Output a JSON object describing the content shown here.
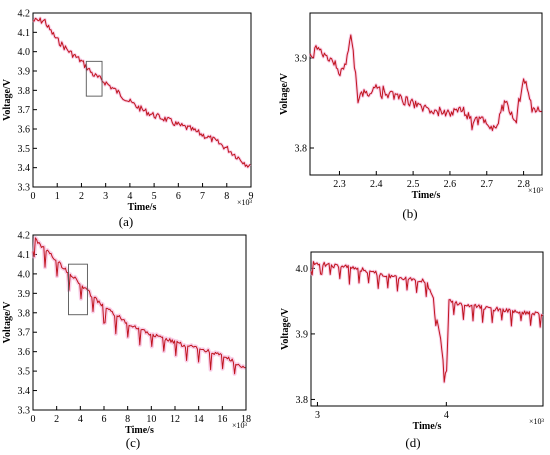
{
  "colors": {
    "line": "#c0141e",
    "halo": "#f4a6d3",
    "axis": "#000000",
    "box": "#555555"
  },
  "chart_data": [
    {
      "panel": "(a)",
      "type": "line",
      "xlabel": "Time/s",
      "ylabel": "Voltage/V",
      "x_exponent_label": "×10³",
      "xlim": [
        0,
        9
      ],
      "ylim": [
        3.3,
        4.2
      ],
      "xticks": [
        0,
        1,
        2,
        3,
        4,
        5,
        6,
        7,
        8,
        9
      ],
      "xtick_labels": [
        "0",
        "1",
        "2",
        "3",
        "4",
        "5",
        "6",
        "7",
        "8",
        "9"
      ],
      "yticks": [
        3.3,
        3.4,
        3.5,
        3.6,
        3.7,
        3.8,
        3.9,
        4.0,
        4.1,
        4.2
      ],
      "ytick_labels": [
        "3.3",
        "3.4",
        "3.5",
        "3.6",
        "3.7",
        "3.8",
        "3.9",
        "4.0",
        "4.1",
        "4.2"
      ],
      "zoom_box": {
        "x": [
          2.2,
          2.85
        ],
        "y": [
          3.77,
          3.95
        ]
      },
      "series": [
        {
          "x": [
            0,
            0.5,
            0.6,
            1,
            1.5,
            2,
            2.5,
            3,
            3.5,
            4,
            4.5,
            5,
            5.5,
            6,
            6.5,
            7,
            7.5,
            8,
            8.5,
            9
          ],
          "values": [
            4.16,
            4.16,
            4.13,
            4.06,
            4.0,
            3.95,
            3.88,
            3.84,
            3.79,
            3.74,
            3.7,
            3.67,
            3.65,
            3.62,
            3.6,
            3.57,
            3.54,
            3.5,
            3.45,
            3.4
          ]
        }
      ]
    },
    {
      "panel": "(b)",
      "type": "line",
      "xlabel": "Time/s",
      "ylabel": "Voltage/V",
      "x_exponent_label": "×10³",
      "xlim": [
        2.22,
        2.85
      ],
      "ylim": [
        3.77,
        3.95
      ],
      "xticks": [
        2.3,
        2.4,
        2.5,
        2.6,
        2.7,
        2.8
      ],
      "xtick_labels": [
        "2.3",
        "2.4",
        "2.5",
        "2.6",
        "2.7",
        "2.8"
      ],
      "yticks": [
        3.8,
        3.9
      ],
      "ytick_labels": [
        "3.8",
        "3.9"
      ],
      "series": [
        {
          "x": [
            2.22,
            2.24,
            2.26,
            2.28,
            2.3,
            2.32,
            2.33,
            2.35,
            2.38,
            2.4,
            2.43,
            2.46,
            2.5,
            2.53,
            2.56,
            2.6,
            2.63,
            2.66,
            2.69,
            2.72,
            2.75,
            2.78,
            2.8,
            2.83,
            2.85
          ],
          "values": [
            3.9,
            3.91,
            3.9,
            3.9,
            3.88,
            3.9,
            3.93,
            3.86,
            3.86,
            3.87,
            3.86,
            3.855,
            3.85,
            3.845,
            3.84,
            3.84,
            3.845,
            3.83,
            3.83,
            3.82,
            3.85,
            3.83,
            3.88,
            3.84,
            3.845
          ]
        }
      ]
    },
    {
      "panel": "(c)",
      "type": "line",
      "xlabel": "Time/s",
      "ylabel": "Voltage/V",
      "x_exponent_label": "×10³",
      "xlim": [
        0,
        18
      ],
      "ylim": [
        3.3,
        4.2
      ],
      "xticks": [
        0,
        2,
        4,
        6,
        8,
        10,
        12,
        14,
        16,
        18
      ],
      "xtick_labels": [
        "0",
        "2",
        "4",
        "6",
        "8",
        "10",
        "12",
        "14",
        "16",
        "18"
      ],
      "yticks": [
        3.3,
        3.4,
        3.5,
        3.6,
        3.7,
        3.8,
        3.9,
        4.0,
        4.1,
        4.2
      ],
      "ytick_labels": [
        "3.3",
        "3.4",
        "3.5",
        "3.6",
        "3.7",
        "3.8",
        "3.9",
        "4.0",
        "4.1",
        "4.2"
      ],
      "zoom_box": {
        "x": [
          3,
          4.6
        ],
        "y": [
          3.79,
          4.05
        ]
      },
      "series": [
        {
          "x": [
            0,
            1,
            2,
            3,
            4,
            5,
            6,
            7,
            8,
            9,
            10,
            11,
            12,
            13,
            14,
            15,
            16,
            17,
            18
          ],
          "values": [
            4.17,
            4.11,
            4.05,
            3.99,
            3.93,
            3.87,
            3.81,
            3.77,
            3.73,
            3.7,
            3.67,
            3.65,
            3.63,
            3.61,
            3.6,
            3.58,
            3.56,
            3.53,
            3.49
          ]
        }
      ]
    },
    {
      "panel": "(d)",
      "type": "line",
      "xlabel": "Time/s",
      "ylabel": "Voltage/V",
      "x_exponent_label": "×10³",
      "xlim": [
        2.95,
        4.75
      ],
      "ylim": [
        3.79,
        4.025
      ],
      "xticks": [
        3,
        4
      ],
      "xtick_labels": [
        "3",
        "4"
      ],
      "yticks": [
        3.8,
        3.9,
        4.0
      ],
      "ytick_labels": [
        "3.8",
        "3.9",
        "4.0"
      ],
      "series": [
        {
          "x": [
            2.95,
            3.1,
            3.3,
            3.5,
            3.7,
            3.85,
            3.88,
            3.9,
            3.95,
            3.98,
            4.0,
            4.02,
            4.1,
            4.3,
            4.5,
            4.75
          ],
          "values": [
            4.01,
            4.005,
            4.0,
            3.99,
            3.985,
            3.98,
            3.96,
            3.955,
            3.9,
            3.85,
            3.83,
            3.95,
            3.945,
            3.94,
            3.935,
            3.93
          ]
        }
      ]
    }
  ]
}
